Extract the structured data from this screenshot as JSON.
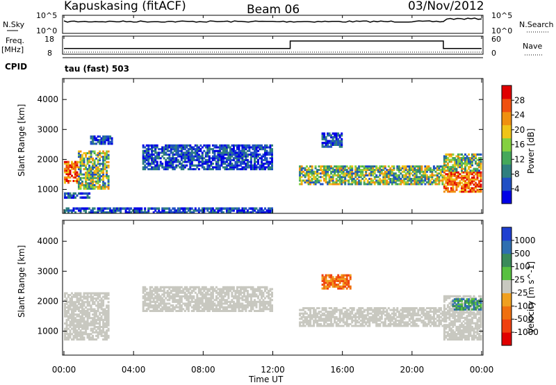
{
  "header": {
    "station": "Kapuskasing (fitACF)",
    "beam": "Beam 06",
    "date": "03/Nov/2012"
  },
  "top_panels": {
    "nsky_label": "N.Sky",
    "nsky_ticks": [
      "10^5",
      "10^0"
    ],
    "nsearch_label": "N.Search",
    "nsearch_ticks": [
      "10^5",
      "10^0"
    ],
    "freq_label": "Freq.",
    "freq_unit": "[MHz]",
    "freq_ticks": [
      "18",
      "8"
    ],
    "nave_label": "Nave",
    "nave_ticks": [
      "60",
      "0"
    ],
    "cpid_label": "CPID",
    "cpid_value": "tau (fast) 503",
    "freq_steps": [
      {
        "from_hour": 0,
        "to_hour": 13.0,
        "freq": 11
      },
      {
        "from_hour": 13.0,
        "to_hour": 21.8,
        "freq": 15.5
      },
      {
        "from_hour": 21.8,
        "to_hour": 24,
        "freq": 11
      }
    ]
  },
  "chart_data": [
    {
      "type": "heatmap",
      "name": "power",
      "ylabel": "Slant Range [km]",
      "yticks": [
        1000,
        2000,
        3000,
        4000
      ],
      "ylim": [
        200,
        4700
      ],
      "xlim": [
        0,
        24
      ],
      "colorbar_label": "Power [dB]",
      "colorbar_ticks": [
        "4",
        "8",
        "12",
        "16",
        "20",
        "24",
        "28"
      ],
      "colors": [
        "#0000e6",
        "#1f4fc4",
        "#2f7f7f",
        "#45a85a",
        "#84d040",
        "#f0c418",
        "#f09010",
        "#f05010",
        "#e00000"
      ],
      "regions": [
        {
          "h0": 0.0,
          "h1": 0.8,
          "r0": 1200,
          "r1": 1950,
          "level": "high"
        },
        {
          "h0": 0.8,
          "h1": 2.6,
          "r0": 1000,
          "r1": 2300,
          "level": "mid"
        },
        {
          "h0": 0.0,
          "h1": 1.5,
          "r0": 700,
          "r1": 900,
          "level": "low"
        },
        {
          "h0": 1.5,
          "h1": 2.8,
          "r0": 2500,
          "r1": 2800,
          "level": "low"
        },
        {
          "h0": 4.5,
          "h1": 12.0,
          "r0": 1650,
          "r1": 2500,
          "level": "low"
        },
        {
          "h0": 13.5,
          "h1": 21.8,
          "r0": 1150,
          "r1": 1800,
          "level": "mid"
        },
        {
          "h0": 14.8,
          "h1": 16.0,
          "r0": 2400,
          "r1": 2900,
          "level": "low"
        },
        {
          "h0": 21.8,
          "h1": 24.0,
          "r0": 900,
          "r1": 1600,
          "level": "high"
        },
        {
          "h0": 21.8,
          "h1": 24.0,
          "r0": 1600,
          "r1": 2200,
          "level": "mid"
        },
        {
          "h0": 0.0,
          "h1": 12.0,
          "r0": 200,
          "r1": 400,
          "level": "low"
        }
      ]
    },
    {
      "type": "heatmap",
      "name": "velocity",
      "ylabel": "Slant Range [km]",
      "yticks": [
        1000,
        2000,
        3000,
        4000
      ],
      "ylim": [
        200,
        4700
      ],
      "xlim": [
        0,
        24
      ],
      "colorbar_label": "Velocity [m s^-1]",
      "colorbar_ticks": [
        "1000",
        "500",
        "100",
        "25",
        "-25",
        "-100",
        "-500",
        "-1000"
      ],
      "colors": [
        "#1f3fd0",
        "#2f6fb0",
        "#3a8a5a",
        "#58c040",
        "#c8c8c0",
        "#f0a020",
        "#f07010",
        "#f04010",
        "#e00000"
      ],
      "regions": [
        {
          "h0": 0.0,
          "h1": 2.6,
          "r0": 700,
          "r1": 2300,
          "level": "ground"
        },
        {
          "h0": 4.5,
          "h1": 12.0,
          "r0": 1650,
          "r1": 2500,
          "level": "ground"
        },
        {
          "h0": 13.5,
          "h1": 21.8,
          "r0": 1150,
          "r1": 1800,
          "level": "ground"
        },
        {
          "h0": 21.8,
          "h1": 24.0,
          "r0": 700,
          "r1": 2200,
          "level": "ground"
        },
        {
          "h0": 14.8,
          "h1": 16.5,
          "r0": 2400,
          "r1": 2900,
          "level": "neg"
        },
        {
          "h0": 22.3,
          "h1": 24.0,
          "r0": 1700,
          "r1": 2100,
          "level": "pos"
        }
      ]
    }
  ],
  "x_axis": {
    "ticks": [
      "00:00",
      "04:00",
      "08:00",
      "12:00",
      "16:00",
      "20:00",
      "00:00"
    ],
    "label": "Time UT"
  }
}
